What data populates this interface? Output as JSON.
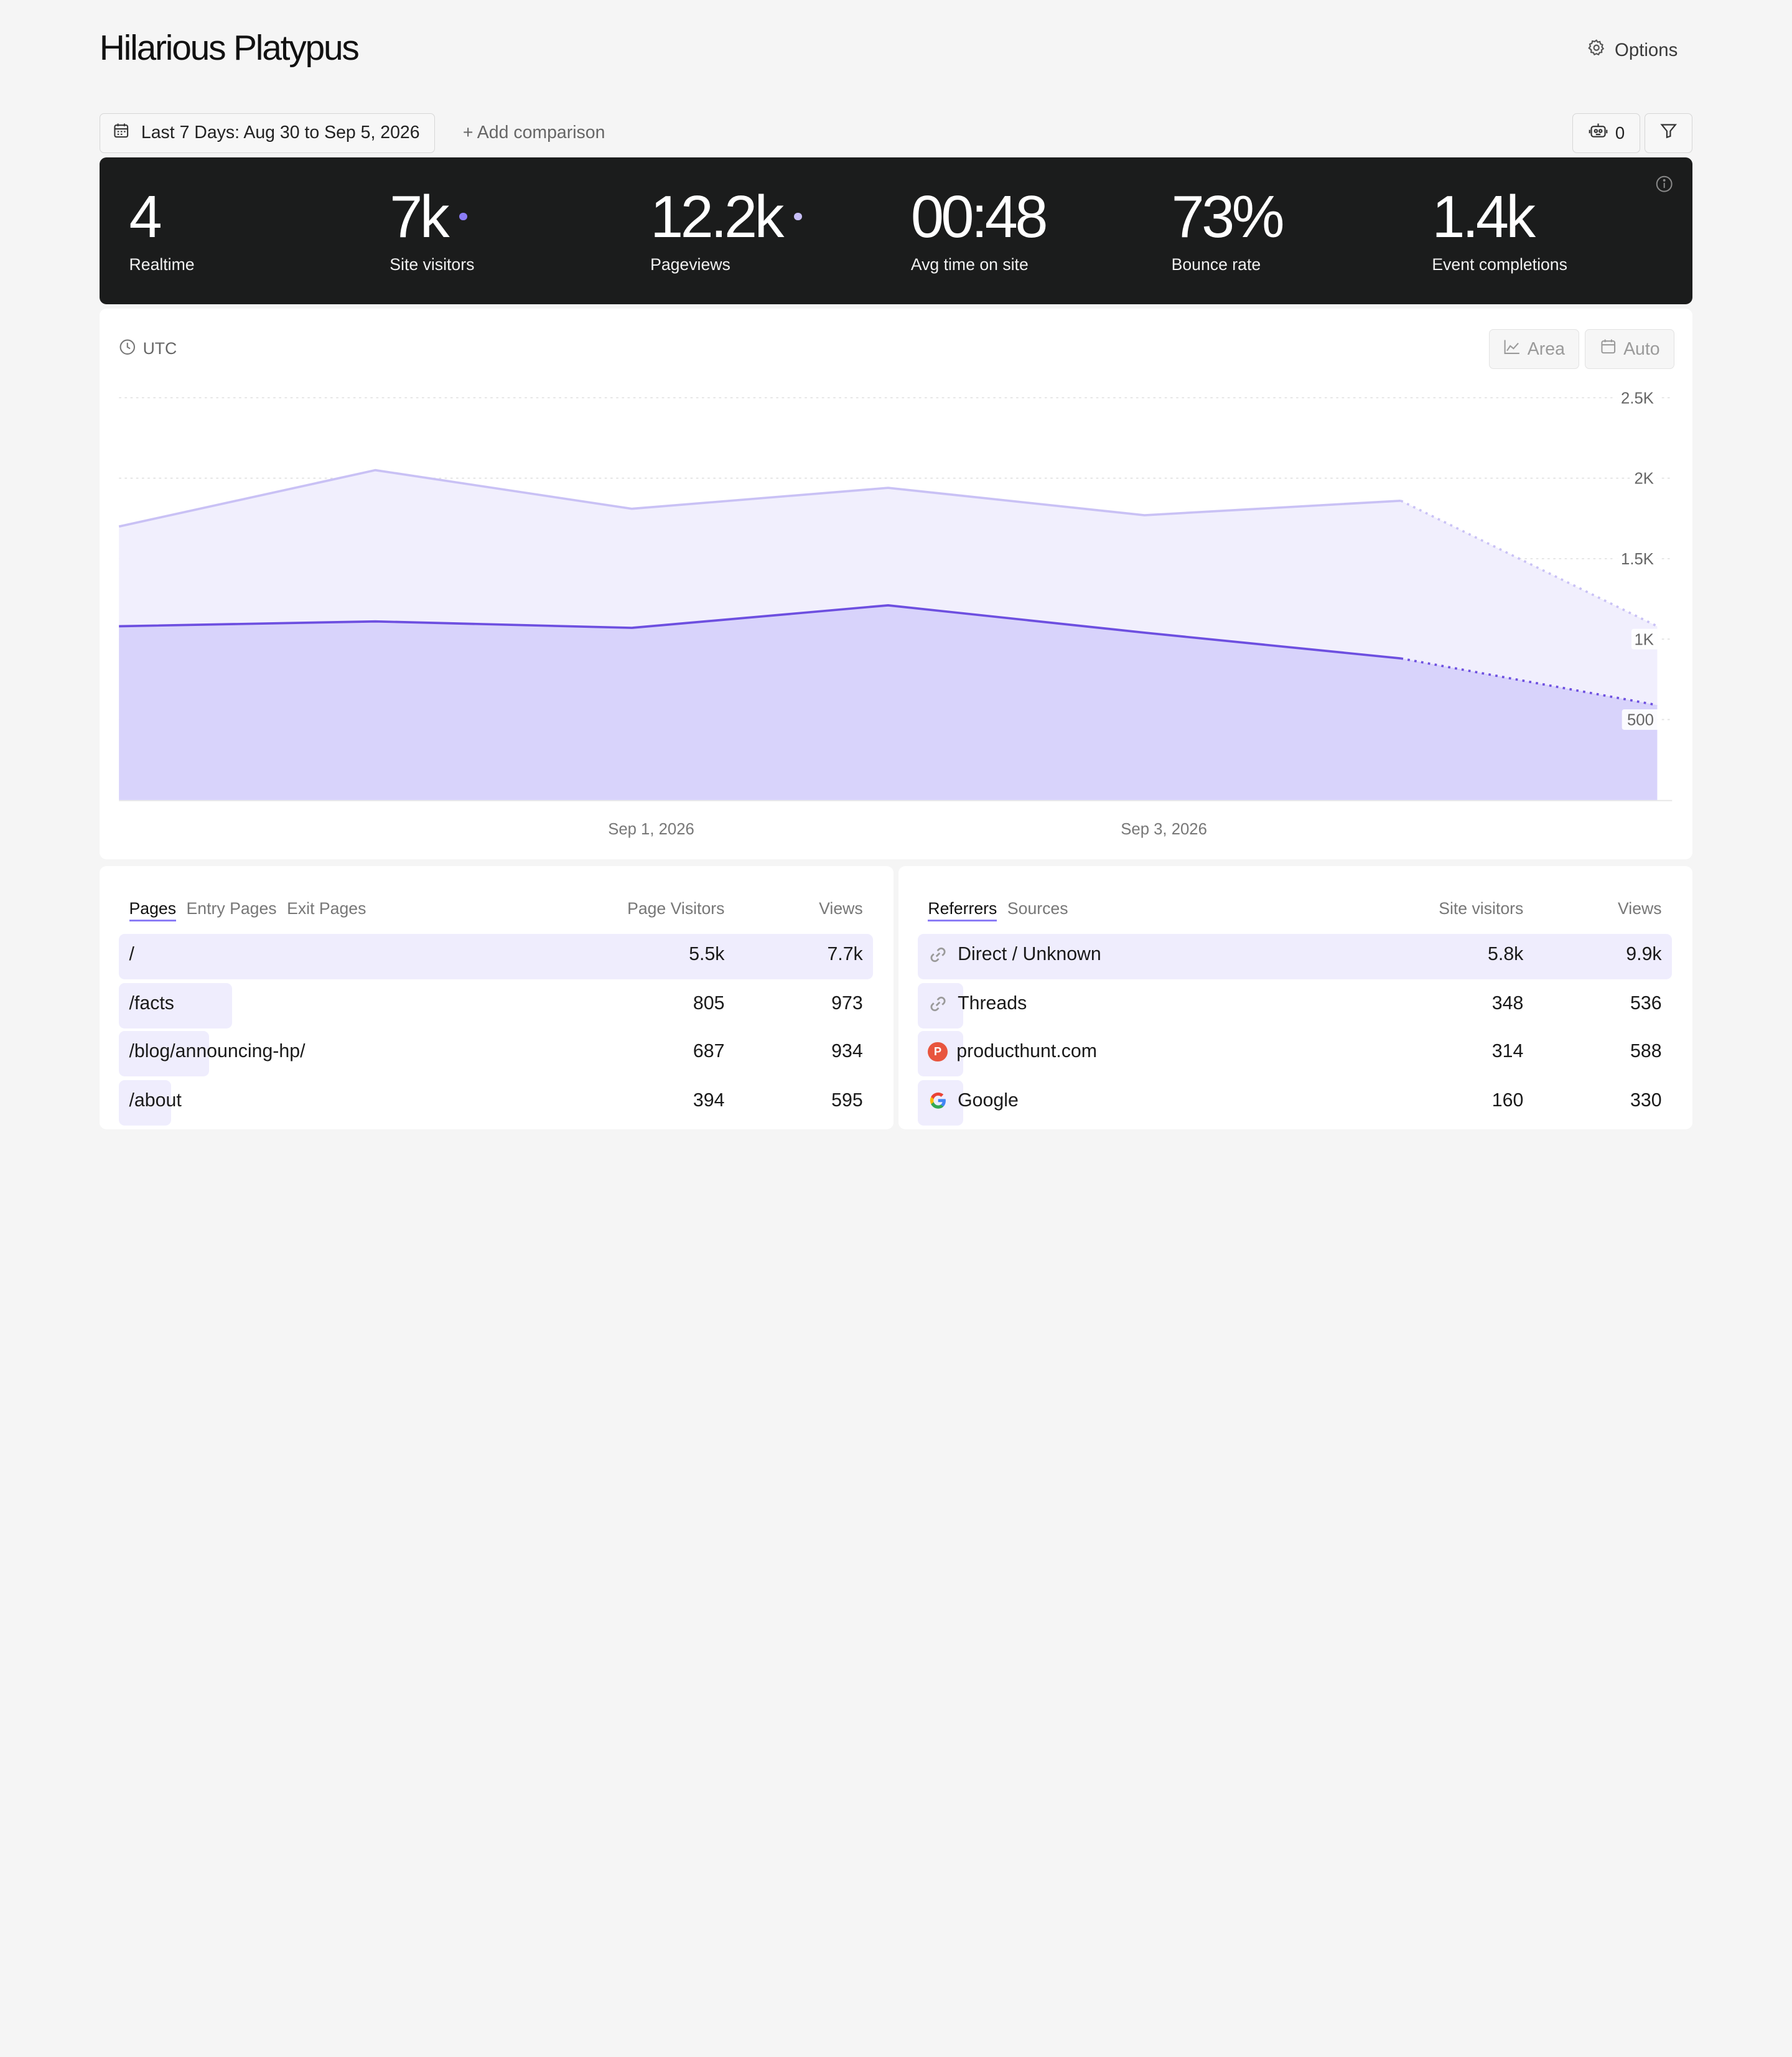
{
  "header": {
    "site_title": "Hilarious Platypus",
    "options_label": "Options"
  },
  "toolbar": {
    "date_range": "Last 7 Days: Aug 30 to Sep 5, 2026",
    "add_comparison": "+ Add comparison",
    "bot_count": "0"
  },
  "stats": [
    {
      "value": "4",
      "label": "Realtime",
      "dot": false
    },
    {
      "value": "7k",
      "label": "Site visitors",
      "dot": true
    },
    {
      "value": "12.2k",
      "label": "Pageviews",
      "dot": true
    },
    {
      "value": "00:48",
      "label": "Avg time on site",
      "dot": false
    },
    {
      "value": "73%",
      "label": "Bounce rate",
      "dot": false
    },
    {
      "value": "1.4k",
      "label": "Event completions",
      "dot": false
    }
  ],
  "chart": {
    "timezone": "UTC",
    "area_button": "Area",
    "auto_button": "Auto"
  },
  "chart_data": {
    "type": "area",
    "x": [
      "Aug 30, 2026",
      "Aug 31, 2026",
      "Sep 1, 2026",
      "Sep 2, 2026",
      "Sep 3, 2026",
      "Sep 4, 2026",
      "Sep 5, 2026"
    ],
    "x_tick_labels": [
      "Sep 1, 2026",
      "Sep 3, 2026"
    ],
    "y_tick_labels": [
      "500",
      "1K",
      "1.5K",
      "2K",
      "2.5K"
    ],
    "ylim": [
      0,
      2500
    ],
    "grid": true,
    "series": [
      {
        "values": [
          1700,
          2050,
          1810,
          1940,
          1770,
          1860,
          1080
        ],
        "color": "#c9c1f5",
        "fill": "#f1effd",
        "partial_last": true
      },
      {
        "values": [
          1080,
          1110,
          1070,
          1210,
          1040,
          880,
          590
        ],
        "color": "#6d4fe0",
        "fill": "#d8d3fb",
        "partial_last": true
      }
    ]
  },
  "pages_table": {
    "tabs": [
      "Pages",
      "Entry Pages",
      "Exit Pages"
    ],
    "columns": [
      "Page Visitors",
      "Views"
    ],
    "rows": [
      {
        "label": "/",
        "visitors": "5.5k",
        "views": "7.7k",
        "share": 1.0
      },
      {
        "label": "/facts",
        "visitors": "805",
        "views": "973",
        "share": 0.15
      },
      {
        "label": "/blog/announcing-hp/",
        "visitors": "687",
        "views": "934",
        "share": 0.12
      },
      {
        "label": "/about",
        "visitors": "394",
        "views": "595",
        "share": 0.07
      }
    ]
  },
  "referrers_table": {
    "tabs": [
      "Referrers",
      "Sources"
    ],
    "columns": [
      "Site visitors",
      "Views"
    ],
    "rows": [
      {
        "label": "Direct / Unknown",
        "icon": "link-icon",
        "visitors": "5.8k",
        "views": "9.9k",
        "share": 1.0
      },
      {
        "label": "Threads",
        "icon": "link-icon",
        "visitors": "348",
        "views": "536",
        "share": 0.06
      },
      {
        "label": "producthunt.com",
        "icon": "producthunt-icon",
        "visitors": "314",
        "views": "588",
        "share": 0.05
      },
      {
        "label": "Google",
        "icon": "google-icon",
        "visitors": "160",
        "views": "330",
        "share": 0.03
      }
    ]
  }
}
